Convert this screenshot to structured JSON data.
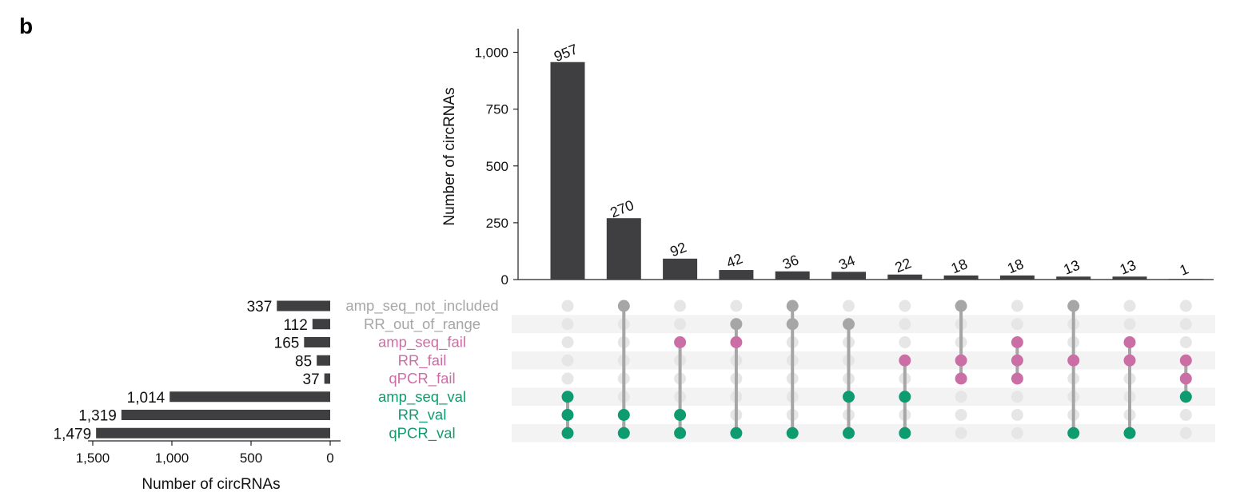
{
  "panel_label": "b",
  "colors": {
    "bar": "#3f3f41",
    "grey": "#a6a6a6",
    "pink": "#cc6ea6",
    "green": "#0e9b6f",
    "inactive": "#e6e6e6",
    "stripe": "#f3f3f3"
  },
  "chart_data": [
    {
      "type": "bar",
      "id": "intersection-sizes",
      "ylabel": "Number of circRNAs",
      "ylim": [
        0,
        1100
      ],
      "yticks": [
        0,
        250,
        500,
        750,
        1000
      ],
      "ytick_labels": [
        "0",
        "250",
        "500",
        "750",
        "1,000"
      ],
      "values": [
        957,
        270,
        92,
        42,
        36,
        34,
        22,
        18,
        18,
        13,
        13,
        1
      ],
      "value_labels": [
        "957",
        "270",
        "92",
        "42",
        "36",
        "34",
        "22",
        "18",
        "18",
        "13",
        "13",
        "1"
      ]
    },
    {
      "type": "bar",
      "orientation": "horizontal",
      "id": "set-sizes",
      "xlabel": "Number of circRNAs",
      "xlim": [
        1550,
        0
      ],
      "xticks": [
        1500,
        1000,
        500,
        0
      ],
      "xtick_labels": [
        "1,500",
        "1,000",
        "500",
        "0"
      ],
      "categories": [
        "amp_seq_not_included",
        "RR_out_of_range",
        "amp_seq_fail",
        "RR_fail",
        "qPCR_fail",
        "amp_seq_val",
        "RR_val",
        "qPCR_val"
      ],
      "category_groups": [
        "grey",
        "grey",
        "pink",
        "pink",
        "pink",
        "green",
        "green",
        "green"
      ],
      "values": [
        337,
        112,
        165,
        85,
        37,
        1014,
        1319,
        1479
      ],
      "value_labels": [
        "337",
        "112",
        "165",
        "85",
        "37",
        "1,014",
        "1,319",
        "1,479"
      ]
    },
    {
      "type": "table",
      "id": "intersection-matrix",
      "sets": [
        "amp_seq_not_included",
        "RR_out_of_range",
        "amp_seq_fail",
        "RR_fail",
        "qPCR_fail",
        "amp_seq_val",
        "RR_val",
        "qPCR_val"
      ],
      "intersections": [
        [
          "amp_seq_val",
          "RR_val",
          "qPCR_val"
        ],
        [
          "amp_seq_not_included",
          "RR_val",
          "qPCR_val"
        ],
        [
          "amp_seq_fail",
          "RR_val",
          "qPCR_val"
        ],
        [
          "RR_out_of_range",
          "amp_seq_fail",
          "qPCR_val"
        ],
        [
          "amp_seq_not_included",
          "RR_out_of_range",
          "qPCR_val"
        ],
        [
          "RR_out_of_range",
          "amp_seq_val",
          "qPCR_val"
        ],
        [
          "RR_fail",
          "amp_seq_val",
          "qPCR_val"
        ],
        [
          "amp_seq_not_included",
          "RR_fail",
          "qPCR_fail"
        ],
        [
          "amp_seq_fail",
          "RR_fail",
          "qPCR_fail"
        ],
        [
          "amp_seq_not_included",
          "RR_fail",
          "qPCR_val"
        ],
        [
          "amp_seq_fail",
          "RR_fail",
          "qPCR_val"
        ],
        [
          "RR_fail",
          "qPCR_fail",
          "amp_seq_val"
        ]
      ]
    }
  ]
}
